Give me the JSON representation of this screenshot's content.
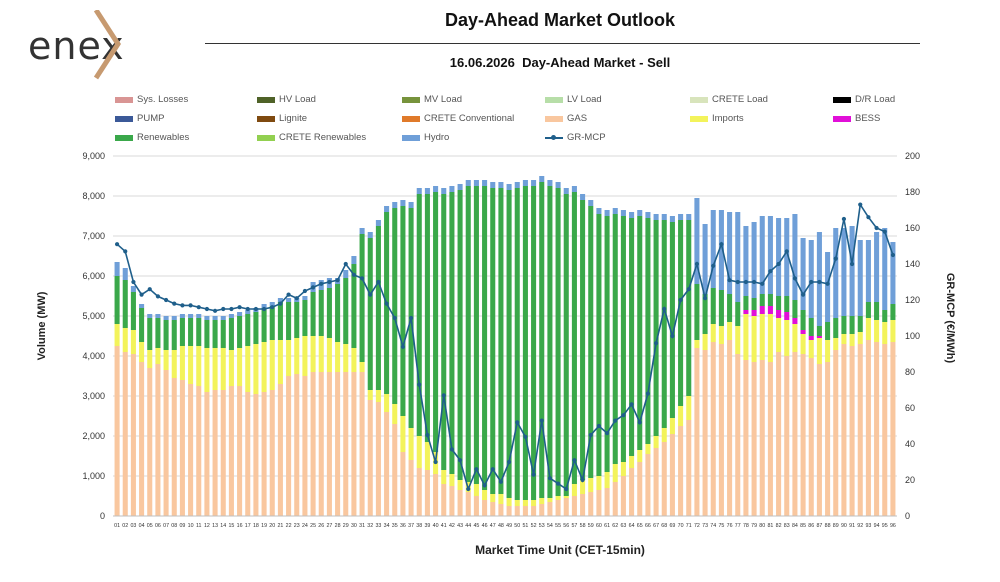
{
  "logo": {
    "text": "enex"
  },
  "header": {
    "title": "Day-Ahead Market Outlook",
    "subtitle": "16.06.2026  Day-Ahead Market - Sell"
  },
  "legend": [
    {
      "label": "Sys. Losses",
      "color": "#d99594"
    },
    {
      "label": "HV Load",
      "color": "#4f6228"
    },
    {
      "label": "MV Load",
      "color": "#77933c"
    },
    {
      "label": "LV Load",
      "color": "#b7dea8"
    },
    {
      "label": "CRETE Load",
      "color": "#d8e4bc"
    },
    {
      "label": "D/R Load",
      "color": "#000000"
    },
    {
      "label": "PUMP",
      "color": "#3b5998"
    },
    {
      "label": "Lignite",
      "color": "#7f4a10"
    },
    {
      "label": "CRETE Conventional",
      "color": "#e07a2a"
    },
    {
      "label": "GAS",
      "color": "#f9c79f"
    },
    {
      "label": "Imports",
      "color": "#f3f35b"
    },
    {
      "label": "BESS",
      "color": "#e10fd8"
    },
    {
      "label": "Renewables",
      "color": "#3aa84a"
    },
    {
      "label": "CRETE Renewables",
      "color": "#92d050"
    },
    {
      "label": "Hydro",
      "color": "#6f9fd8"
    },
    {
      "label": "GR-MCP",
      "color": "#1f5f8b"
    }
  ],
  "chart_data": {
    "type": "bar",
    "stacked": true,
    "title": "16.06.2026  Day-Ahead Market - Sell",
    "xlabel": "Market Time Unit (CET-15min)",
    "ylabel": "Volume (MW)",
    "y2label": "GR-MCP (€/MWh)",
    "ylim": [
      0,
      9000
    ],
    "y2lim": [
      0,
      200
    ],
    "yticks": [
      0,
      1000,
      2000,
      3000,
      4000,
      5000,
      6000,
      7000,
      8000,
      9000
    ],
    "yticklabels": [
      "0",
      "1,000",
      "2,000",
      "3,000",
      "4,000",
      "5,000",
      "6,000",
      "7,000",
      "8,000",
      "9,000"
    ],
    "y2ticks": [
      0,
      20,
      40,
      60,
      80,
      100,
      120,
      140,
      160,
      180,
      200
    ],
    "grid": true,
    "legend_position": "top",
    "categories": [
      "01",
      "02",
      "03",
      "04",
      "05",
      "06",
      "07",
      "08",
      "09",
      "10",
      "11",
      "12",
      "13",
      "14",
      "15",
      "16",
      "17",
      "18",
      "19",
      "20",
      "21",
      "22",
      "23",
      "24",
      "25",
      "26",
      "27",
      "28",
      "29",
      "30",
      "31",
      "32",
      "33",
      "34",
      "35",
      "36",
      "37",
      "38",
      "39",
      "40",
      "41",
      "42",
      "43",
      "44",
      "45",
      "46",
      "47",
      "48",
      "49",
      "50",
      "51",
      "52",
      "53",
      "54",
      "55",
      "56",
      "57",
      "58",
      "59",
      "60",
      "61",
      "62",
      "63",
      "64",
      "65",
      "66",
      "67",
      "68",
      "69",
      "70",
      "71",
      "72",
      "73",
      "74",
      "75",
      "76",
      "77",
      "78",
      "79",
      "80",
      "81",
      "82",
      "83",
      "84",
      "85",
      "86",
      "87",
      "88",
      "89",
      "90",
      "91",
      "92",
      "93",
      "94",
      "95",
      "96"
    ],
    "series": [
      {
        "name": "GAS",
        "color": "#f9c79f",
        "values": [
          4250,
          4100,
          4050,
          3850,
          3700,
          3800,
          3650,
          3450,
          3400,
          3300,
          3250,
          3100,
          3150,
          3150,
          3250,
          3250,
          3100,
          3050,
          3100,
          3150,
          3300,
          3500,
          3550,
          3500,
          3600,
          3600,
          3600,
          3600,
          3600,
          3600,
          3600,
          2900,
          2850,
          2600,
          2300,
          1600,
          1400,
          1200,
          1150,
          1050,
          800,
          750,
          650,
          600,
          500,
          400,
          350,
          300,
          250,
          250,
          250,
          250,
          300,
          350,
          400,
          450,
          500,
          550,
          600,
          650,
          700,
          850,
          1000,
          1200,
          1350,
          1550,
          1700,
          1850,
          2050,
          2250,
          2400,
          4200,
          4150,
          4350,
          4300,
          4400,
          4050,
          3900,
          3850,
          3900,
          3850,
          4100,
          4000,
          4100,
          4050,
          3950,
          3800,
          3850,
          4150,
          4300,
          4250,
          4300,
          4400,
          4350,
          4300,
          4350
        ]
      },
      {
        "name": "Imports",
        "color": "#f3f35b",
        "values": [
          550,
          600,
          600,
          500,
          450,
          400,
          500,
          700,
          850,
          950,
          1000,
          1100,
          1050,
          1050,
          900,
          950,
          1150,
          1250,
          1250,
          1250,
          1100,
          900,
          900,
          1000,
          900,
          900,
          850,
          750,
          700,
          600,
          250,
          250,
          300,
          450,
          500,
          900,
          800,
          800,
          700,
          550,
          350,
          300,
          250,
          250,
          300,
          250,
          200,
          250,
          200,
          150,
          150,
          150,
          150,
          100,
          100,
          50,
          300,
          350,
          350,
          350,
          400,
          450,
          350,
          300,
          300,
          250,
          300,
          350,
          400,
          500,
          600,
          200,
          400,
          450,
          450,
          450,
          700,
          1150,
          1150,
          1150,
          1200,
          850,
          900,
          700,
          500,
          450,
          650,
          550,
          300,
          250,
          300,
          300,
          550,
          550,
          550,
          550
        ]
      },
      {
        "name": "BESS",
        "color": "#e10fd8",
        "values": [
          0,
          0,
          0,
          0,
          0,
          0,
          0,
          0,
          0,
          0,
          0,
          0,
          0,
          0,
          0,
          0,
          0,
          0,
          0,
          0,
          0,
          0,
          0,
          0,
          0,
          0,
          0,
          0,
          0,
          0,
          0,
          0,
          0,
          0,
          0,
          0,
          0,
          0,
          0,
          0,
          0,
          0,
          0,
          0,
          0,
          0,
          0,
          0,
          0,
          0,
          0,
          0,
          0,
          0,
          0,
          0,
          0,
          0,
          0,
          0,
          0,
          0,
          0,
          0,
          0,
          0,
          0,
          0,
          0,
          0,
          0,
          0,
          0,
          0,
          0,
          0,
          0,
          100,
          150,
          200,
          200,
          200,
          200,
          150,
          100,
          100,
          50,
          0,
          0,
          0,
          0,
          0,
          0,
          0,
          0,
          0
        ]
      },
      {
        "name": "Renewables",
        "color": "#3aa84a",
        "values": [
          1200,
          1200,
          950,
          850,
          800,
          750,
          750,
          750,
          700,
          700,
          700,
          700,
          700,
          700,
          800,
          800,
          800,
          800,
          850,
          850,
          950,
          950,
          900,
          900,
          1100,
          1150,
          1250,
          1450,
          1650,
          2100,
          3200,
          3800,
          4100,
          4550,
          4900,
          5250,
          5500,
          6050,
          6200,
          6500,
          6900,
          7050,
          7250,
          7400,
          7450,
          7600,
          7650,
          7650,
          7700,
          7800,
          7850,
          7850,
          7900,
          7800,
          7700,
          7550,
          7300,
          7000,
          6800,
          6550,
          6400,
          6250,
          6150,
          5950,
          5850,
          5650,
          5400,
          5200,
          4900,
          4650,
          4400,
          1400,
          1000,
          900,
          900,
          700,
          600,
          350,
          300,
          300,
          300,
          350,
          400,
          450,
          500,
          450,
          250,
          450,
          500,
          450,
          450,
          400,
          400,
          450,
          300,
          400
        ]
      },
      {
        "name": "Hydro",
        "color": "#6f9fd8",
        "values": [
          350,
          300,
          150,
          100,
          100,
          100,
          100,
          100,
          100,
          100,
          100,
          100,
          100,
          100,
          100,
          100,
          100,
          100,
          100,
          100,
          100,
          100,
          100,
          100,
          250,
          250,
          250,
          150,
          200,
          200,
          150,
          150,
          150,
          150,
          150,
          150,
          150,
          150,
          150,
          150,
          150,
          150,
          150,
          150,
          150,
          150,
          150,
          150,
          150,
          150,
          150,
          150,
          150,
          150,
          150,
          150,
          150,
          150,
          150,
          150,
          150,
          150,
          150,
          150,
          150,
          150,
          150,
          150,
          150,
          150,
          150,
          2150,
          1750,
          1950,
          2000,
          2050,
          2250,
          1750,
          1900,
          1950,
          1950,
          1950,
          1950,
          2150,
          1800,
          1950,
          2350,
          1750,
          2250,
          2200,
          2250,
          1900,
          1550,
          1750,
          2050,
          1550
        ]
      }
    ],
    "line_series": {
      "name": "GR-MCP",
      "color": "#1f5f8b",
      "axis": "y2",
      "values": [
        151,
        147,
        130,
        123,
        126,
        122,
        120,
        118,
        117,
        117,
        116,
        115,
        114,
        115,
        115,
        116,
        115,
        115,
        115,
        116,
        118,
        123,
        121,
        125,
        127,
        129,
        130,
        131,
        140,
        134,
        132,
        123,
        130,
        118,
        110,
        94,
        110,
        73,
        45,
        30,
        67,
        37,
        31,
        15,
        26,
        17,
        26,
        19,
        30,
        52,
        44,
        23,
        53,
        21,
        18,
        15,
        31,
        20,
        45,
        50,
        46,
        53,
        56,
        62,
        52,
        68,
        96,
        115,
        100,
        120,
        126,
        140,
        121,
        139,
        151,
        131,
        130,
        130,
        130,
        129,
        136,
        140,
        147,
        132,
        123,
        130,
        130,
        129,
        143,
        165,
        140,
        173,
        166,
        160,
        158,
        145
      ]
    }
  }
}
